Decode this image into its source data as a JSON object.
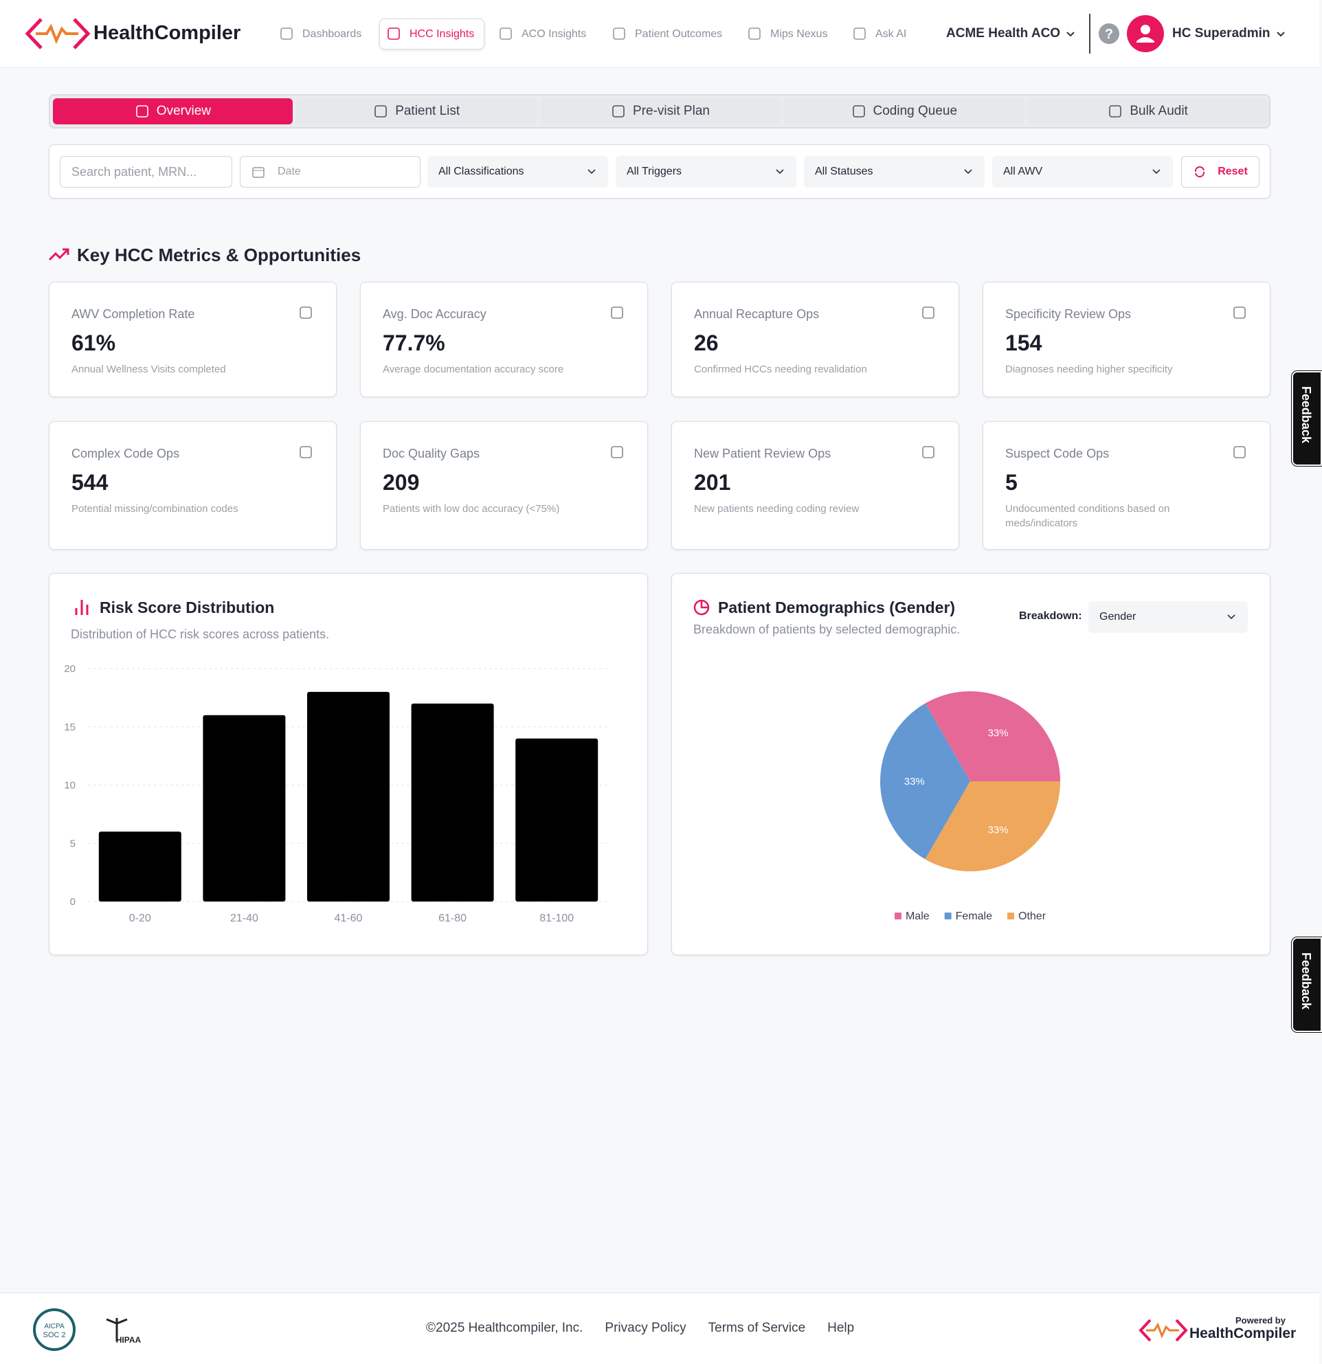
{
  "header": {
    "brand": "HealthCompiler",
    "nav": [
      "Dashboards",
      "HCC Insights",
      "ACO Insights",
      "Patient Outcomes",
      "Mips Nexus",
      "Ask AI"
    ],
    "active_nav": 1,
    "org": "ACME Health ACO",
    "user": "HC Superadmin"
  },
  "tabs": {
    "items": [
      "Overview",
      "Patient List",
      "Pre-visit Plan",
      "Coding Queue",
      "Bulk Audit"
    ],
    "active": 0
  },
  "filters": {
    "search_placeholder": "Search patient, MRN...",
    "date_placeholder": "Date",
    "selects": [
      "All Classifications",
      "All Triggers",
      "All Statuses",
      "All AWV"
    ],
    "reset": "Reset"
  },
  "metrics": {
    "title": "Key HCC Metrics & Opportunities",
    "cards": [
      {
        "label": "AWV Completion Rate",
        "value": "61%",
        "description": "Annual Wellness Visits completed"
      },
      {
        "label": "Avg. Doc Accuracy",
        "value": "77.7%",
        "description": "Average documentation accuracy score"
      },
      {
        "label": "Annual Recapture Ops",
        "value": "26",
        "description": "Confirmed HCCs needing revalidation"
      },
      {
        "label": "Specificity Review Ops",
        "value": "154",
        "description": "Diagnoses needing higher specificity"
      },
      {
        "label": "Complex Code Ops",
        "value": "544",
        "description": "Potential missing/combination codes"
      },
      {
        "label": "Doc Quality Gaps",
        "value": "209",
        "description": "Patients with low doc accuracy (<75%)"
      },
      {
        "label": "New Patient Review Ops",
        "value": "201",
        "description": "New patients needing coding review"
      },
      {
        "label": "Suspect Code Ops",
        "value": "5",
        "description": "Undocumented conditions based on meds/indicators"
      }
    ]
  },
  "chart_data": [
    {
      "type": "bar",
      "title": "Risk Score Distribution",
      "subtitle": "Distribution of HCC risk scores across patients.",
      "categories": [
        "0-20",
        "21-40",
        "41-60",
        "61-80",
        "81-100"
      ],
      "values": [
        6,
        16,
        18,
        17,
        14
      ],
      "color": "#000000",
      "ylim": [
        0,
        20
      ],
      "yticks": [
        0,
        5,
        10,
        15,
        20
      ],
      "grid": true
    },
    {
      "type": "pie",
      "title": "Patient Demographics (Gender)",
      "subtitle": "Breakdown of patients by selected demographic.",
      "categories": [
        "Male",
        "Female",
        "Other"
      ],
      "values": [
        33,
        33,
        33
      ],
      "value_labels": [
        "33%",
        "33%",
        "33%"
      ],
      "colors": [
        "#e66897",
        "#6398d2",
        "#eea75b"
      ],
      "legend": "bottom"
    }
  ],
  "controls": {
    "breakdown_label": "Breakdown:",
    "breakdown_value": "Gender"
  },
  "feedback": [
    "Feedback",
    "Feedback"
  ],
  "footer": {
    "badges": [
      "AICPA",
      "SOC 2",
      "HIPAA"
    ],
    "copyright": "©2025 Healthcompiler, Inc.",
    "links": [
      "Privacy Policy",
      "Terms of Service",
      "Help"
    ],
    "powered_by": "Powered by",
    "brand": "HealthCompiler"
  }
}
